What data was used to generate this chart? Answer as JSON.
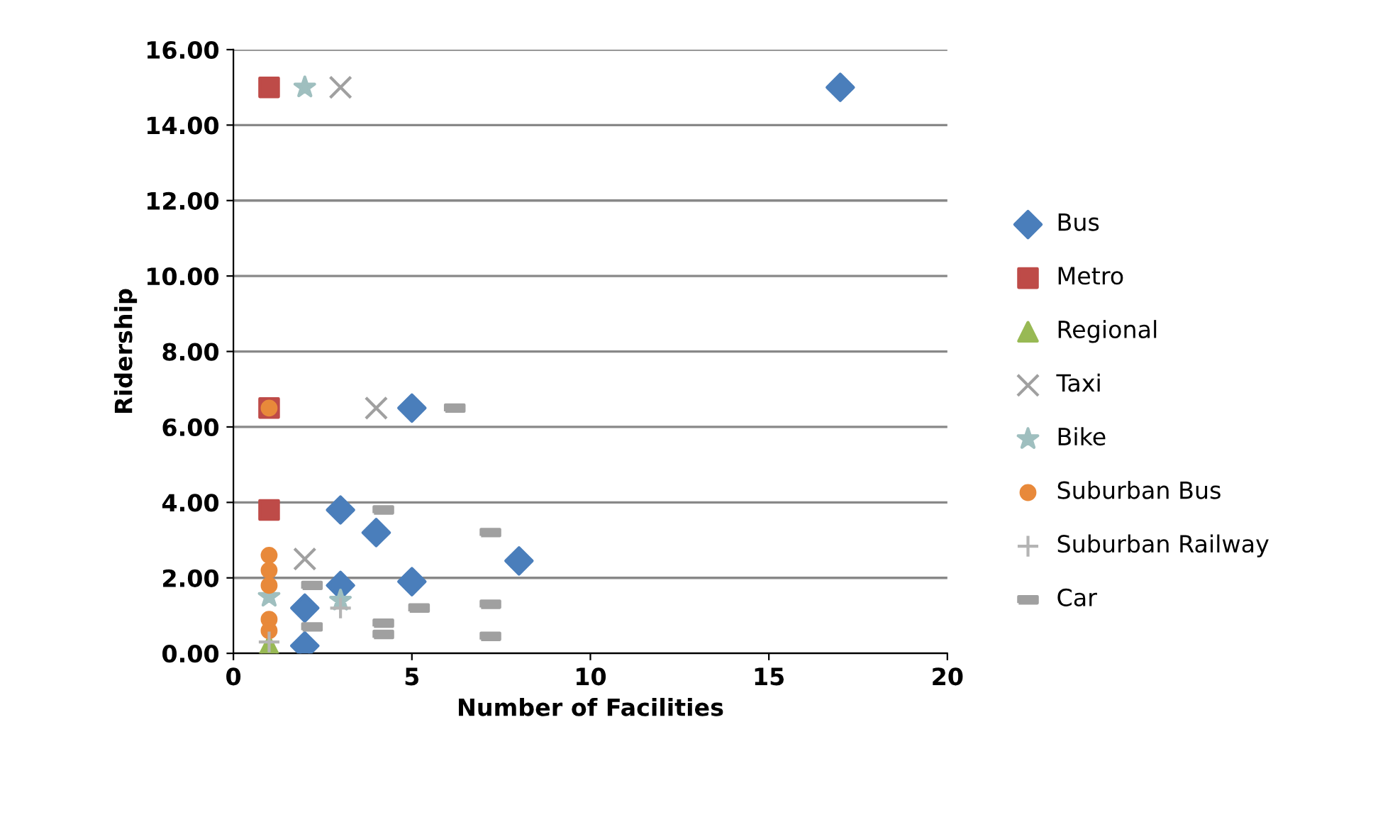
{
  "chart_data": {
    "type": "scatter",
    "xlabel": "Number of Facilities",
    "ylabel": "Ridership",
    "xlim": [
      0,
      20
    ],
    "xticks": [
      0,
      5,
      10,
      15,
      20
    ],
    "ylim": [
      0,
      16
    ],
    "yticks": [
      {
        "value": 0,
        "label": "0.00"
      },
      {
        "value": 2,
        "label": "2.00"
      },
      {
        "value": 4,
        "label": "4.00"
      },
      {
        "value": 6,
        "label": "6.00"
      },
      {
        "value": 8,
        "label": "8.00"
      },
      {
        "value": 10,
        "label": "10.00"
      },
      {
        "value": 12,
        "label": "12.00"
      },
      {
        "value": 14,
        "label": "14.00"
      },
      {
        "value": 16,
        "label": "16.00"
      }
    ],
    "grid": "y",
    "legend": "right",
    "series": [
      {
        "name": "Bus",
        "color": "#4a7ebb",
        "marker": "diamond",
        "x": [
          17,
          5,
          3,
          4,
          8,
          3,
          5,
          2,
          2
        ],
        "values": [
          15,
          6.5,
          3.8,
          3.2,
          2.45,
          1.8,
          1.9,
          1.2,
          0.2
        ]
      },
      {
        "name": "Metro",
        "color": "#be4b48",
        "marker": "square",
        "x": [
          1,
          1,
          1
        ],
        "values": [
          15,
          6.5,
          3.8
        ]
      },
      {
        "name": "Regional",
        "color": "#98b954",
        "marker": "triangle",
        "x": [
          1
        ],
        "values": [
          0.2
        ]
      },
      {
        "name": "Taxi",
        "color": "#a0a0a0",
        "marker": "cross",
        "x": [
          3,
          4,
          2
        ],
        "values": [
          15,
          6.5,
          2.5
        ]
      },
      {
        "name": "Bike",
        "color": "#9fbfbf",
        "marker": "star",
        "x": [
          2,
          3,
          1
        ],
        "values": [
          15,
          1.4,
          1.5
        ]
      },
      {
        "name": "Suburban Bus",
        "color": "#e8893a",
        "marker": "circle",
        "x": [
          1,
          1,
          1,
          1,
          1,
          1
        ],
        "values": [
          6.5,
          2.6,
          2.2,
          1.8,
          0.9,
          0.6
        ]
      },
      {
        "name": "Suburban Railway",
        "color": "#b4b4b4",
        "x": [
          1,
          3
        ],
        "values": [
          0.3,
          1.2
        ]
      },
      {
        "name": "Car",
        "color": "#a0a0a0",
        "x": [
          6.2,
          4.2,
          7.2,
          2.2,
          4.2,
          4.2,
          5.2,
          7.2,
          7.2,
          2.2
        ],
        "values": [
          6.5,
          3.8,
          3.2,
          1.8,
          0.8,
          0.5,
          1.2,
          1.3,
          0.45,
          0.7
        ]
      }
    ]
  }
}
